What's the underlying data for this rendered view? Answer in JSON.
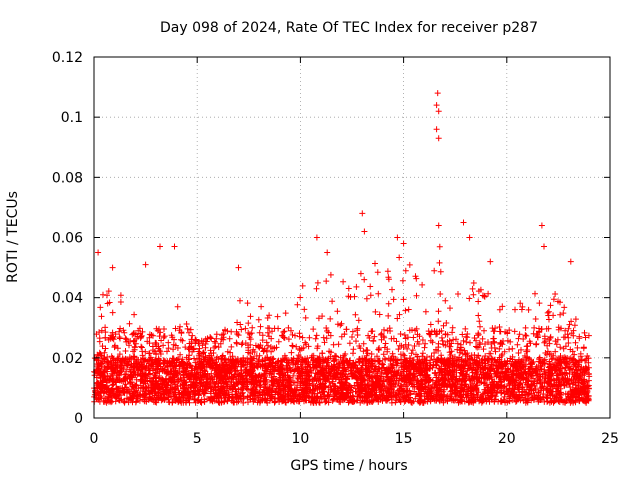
{
  "chart_data": {
    "type": "scatter",
    "title": "Day 098 of 2024, Rate Of TEC Index for receiver p287",
    "xlabel": "GPS time / hours",
    "ylabel": "ROTI / TECUs",
    "xlim": [
      0,
      25
    ],
    "ylim": [
      0,
      0.12
    ],
    "xticks": [
      0,
      5,
      10,
      15,
      20,
      25
    ],
    "xtick_labels": [
      "0",
      "5",
      "10",
      "15",
      "20",
      "25"
    ],
    "yticks": [
      0,
      0.02,
      0.04,
      0.06,
      0.08,
      0.1,
      0.12
    ],
    "ytick_labels": [
      "0",
      "0.02",
      "0.04",
      "0.06",
      "0.08",
      "0.1",
      "0.12"
    ],
    "grid": true,
    "marker": "+",
    "series": [
      {
        "name": "p287",
        "color": "#ff0000",
        "x_range": [
          0,
          24
        ],
        "baseline_band": [
          0.005,
          0.02
        ],
        "notes": "dense cloud of samples across all hours",
        "envelope_hours": [
          0,
          0.5,
          1,
          2,
          3,
          4,
          5,
          6,
          7,
          8,
          9,
          10,
          11,
          12,
          13,
          14,
          15,
          16,
          16.7,
          17,
          18,
          19,
          20,
          21,
          22,
          23,
          24
        ],
        "envelope_values": [
          0.03,
          0.05,
          0.045,
          0.035,
          0.03,
          0.04,
          0.025,
          0.028,
          0.04,
          0.04,
          0.038,
          0.045,
          0.05,
          0.045,
          0.055,
          0.05,
          0.055,
          0.045,
          0.06,
          0.045,
          0.05,
          0.045,
          0.035,
          0.04,
          0.045,
          0.035,
          0.03
        ],
        "outliers": [
          {
            "x": 0.2,
            "y": 0.055
          },
          {
            "x": 0.9,
            "y": 0.05
          },
          {
            "x": 2.5,
            "y": 0.051
          },
          {
            "x": 3.2,
            "y": 0.057
          },
          {
            "x": 3.9,
            "y": 0.057
          },
          {
            "x": 7.0,
            "y": 0.05
          },
          {
            "x": 10.8,
            "y": 0.06
          },
          {
            "x": 11.3,
            "y": 0.055
          },
          {
            "x": 13.0,
            "y": 0.068
          },
          {
            "x": 13.1,
            "y": 0.062
          },
          {
            "x": 14.7,
            "y": 0.06
          },
          {
            "x": 15.0,
            "y": 0.058
          },
          {
            "x": 16.6,
            "y": 0.104
          },
          {
            "x": 16.65,
            "y": 0.108
          },
          {
            "x": 16.7,
            "y": 0.102
          },
          {
            "x": 16.6,
            "y": 0.096
          },
          {
            "x": 16.7,
            "y": 0.093
          },
          {
            "x": 16.7,
            "y": 0.064
          },
          {
            "x": 17.9,
            "y": 0.065
          },
          {
            "x": 18.2,
            "y": 0.06
          },
          {
            "x": 19.2,
            "y": 0.052
          },
          {
            "x": 21.7,
            "y": 0.064
          },
          {
            "x": 21.8,
            "y": 0.057
          },
          {
            "x": 23.1,
            "y": 0.052
          }
        ]
      }
    ]
  }
}
